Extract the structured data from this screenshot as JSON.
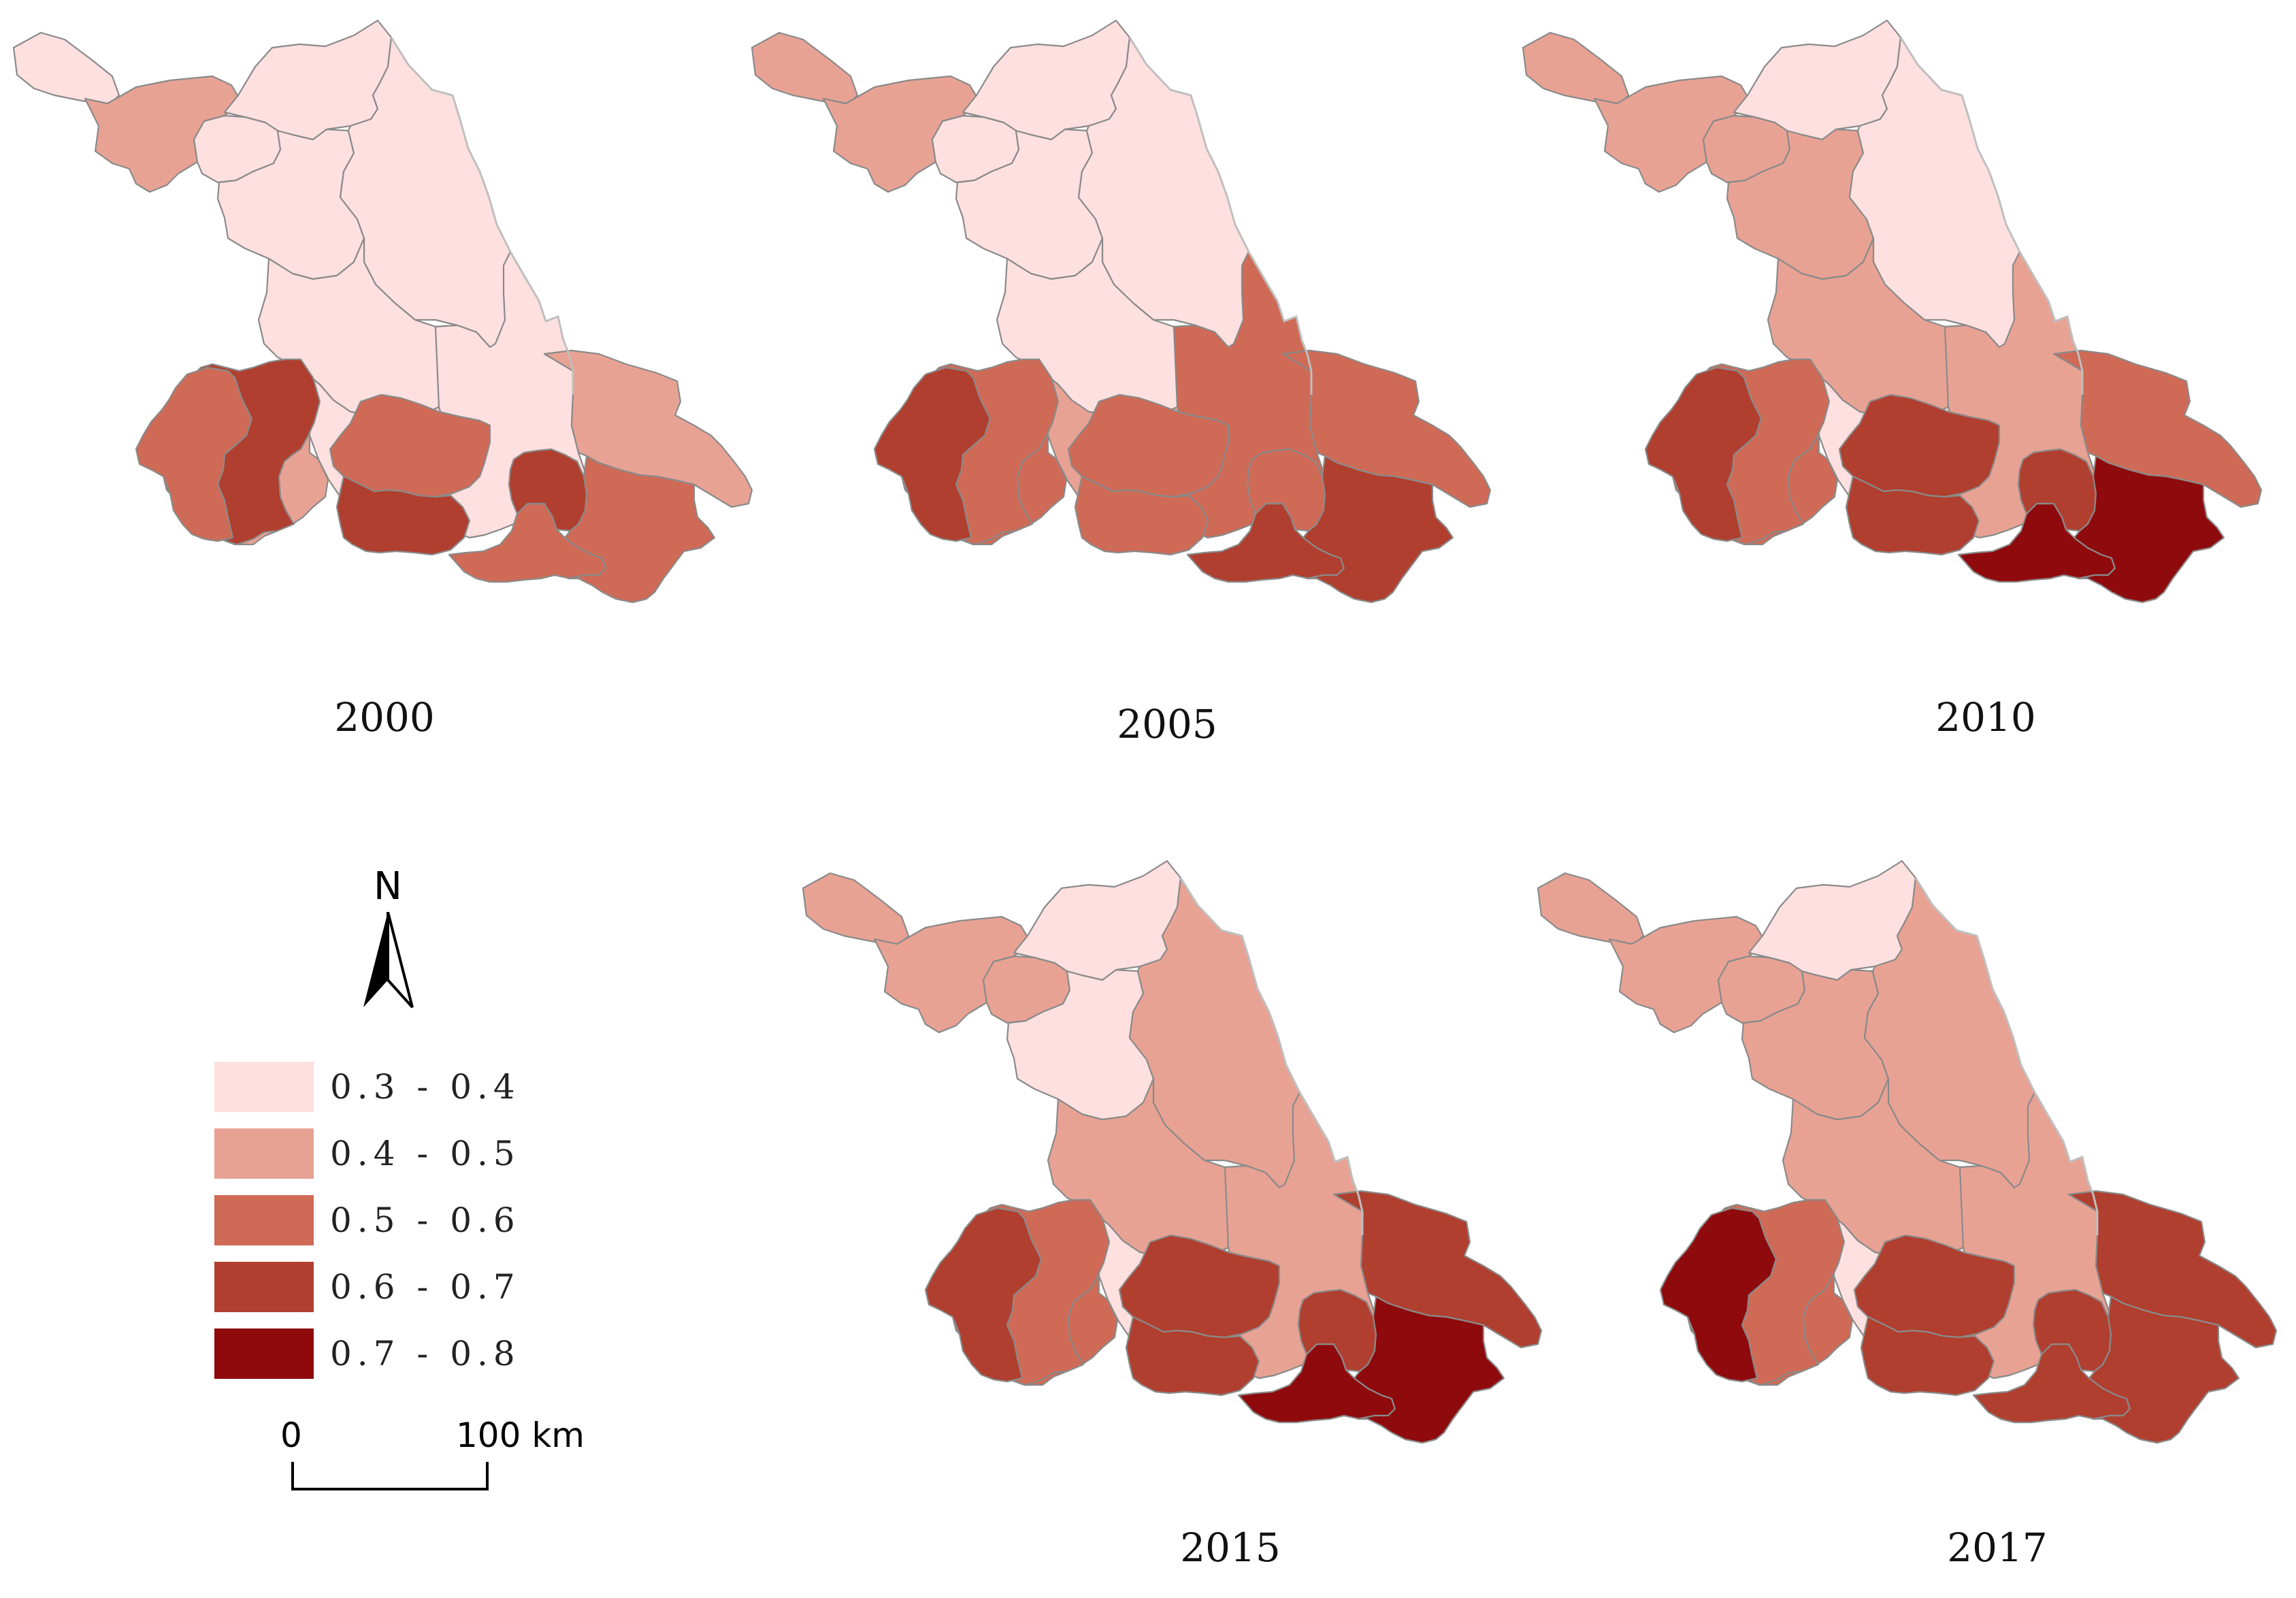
{
  "figure": {
    "panels": [
      {
        "year": "2000",
        "classes": [
          1,
          2,
          1,
          1,
          1,
          1,
          1,
          1,
          2,
          2,
          1,
          2,
          4,
          3,
          3,
          4,
          3,
          4,
          3
        ]
      },
      {
        "year": "2005",
        "classes": [
          2,
          2,
          1,
          1,
          1,
          1,
          1,
          2,
          2,
          3,
          3,
          3,
          3,
          4,
          3,
          3,
          4,
          3,
          4
        ]
      },
      {
        "year": "2010",
        "classes": [
          2,
          2,
          1,
          2,
          2,
          1,
          2,
          1,
          2,
          3,
          2,
          3,
          3,
          4,
          4,
          4,
          5,
          4,
          5
        ]
      },
      {
        "year": "2015",
        "classes": [
          2,
          2,
          1,
          2,
          1,
          2,
          2,
          1,
          1,
          3,
          2,
          4,
          3,
          4,
          4,
          4,
          5,
          4,
          5
        ]
      },
      {
        "year": "2017",
        "classes": [
          2,
          2,
          1,
          2,
          2,
          2,
          2,
          1,
          1,
          3,
          2,
          4,
          3,
          5,
          4,
          4,
          4,
          4,
          4
        ]
      }
    ]
  },
  "legend": {
    "items": [
      {
        "label": "0.3 - 0.4",
        "color": "#fde0df"
      },
      {
        "label": "0.4 - 0.5",
        "color": "#e8a294"
      },
      {
        "label": "0.5 - 0.6",
        "color": "#cf6a56"
      },
      {
        "label": "0.6 - 0.7",
        "color": "#b03f2f"
      },
      {
        "label": "0.7 - 0.8",
        "color": "#8f0a0c"
      }
    ]
  },
  "north_arrow": {
    "label": "N"
  },
  "scale_bar": {
    "start_label": "0",
    "end_label": "100 km"
  }
}
